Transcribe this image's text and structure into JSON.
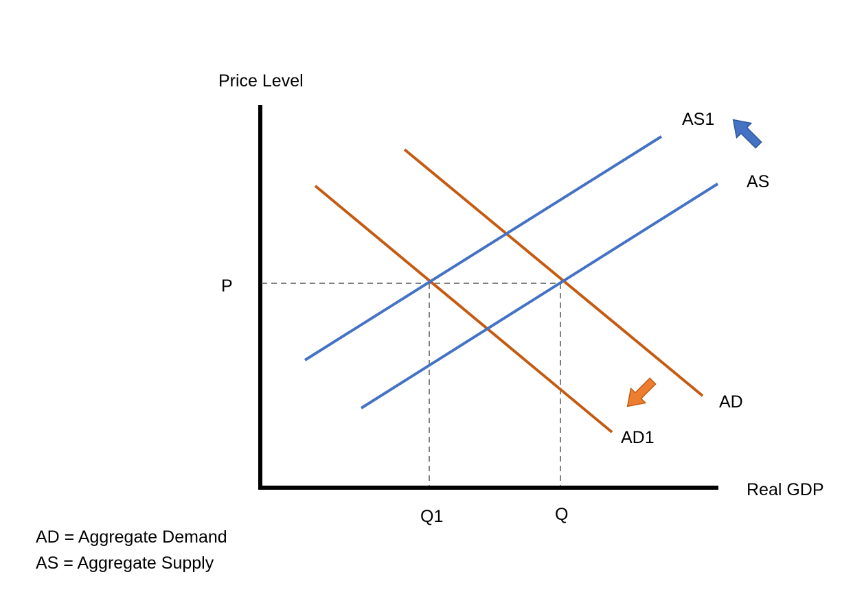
{
  "axes": {
    "y_label": "Price Level",
    "x_label": "Real GDP",
    "price_label": "P",
    "q1_label": "Q1",
    "q_label": "Q"
  },
  "curves": {
    "as1_label": "AS1",
    "as_label": "AS",
    "ad_label": "AD",
    "ad1_label": "AD1"
  },
  "legend": {
    "ad_line": "AD = Aggregate Demand",
    "as_line": "AS = Aggregate Supply"
  },
  "colors": {
    "supply": "#4472C4",
    "demand": "#C55A11",
    "demand_arrow": "#ED7D31",
    "axis": "#000000",
    "guide": "#808080"
  }
}
